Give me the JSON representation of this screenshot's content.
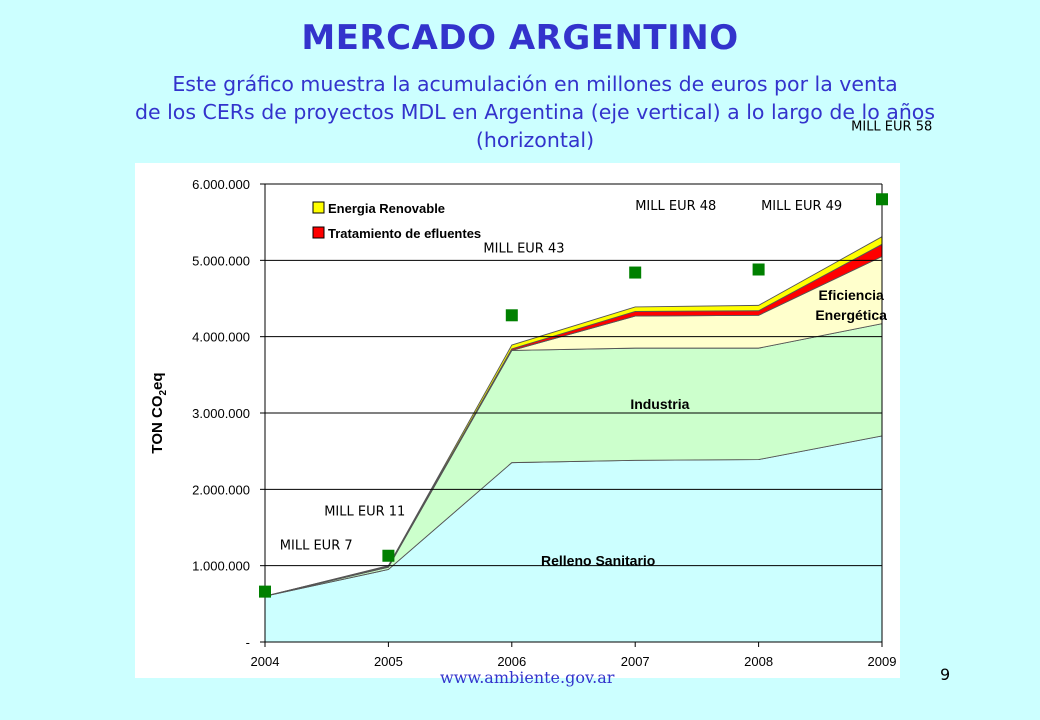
{
  "title": "MERCADO ARGENTINO",
  "subtitle_lines": [
    "Este gráfico muestra la acumulación en millones de euros por la venta",
    "de los CERs de proyectos MDL en Argentina (eje vertical) a lo largo de lo años",
    "(horizontal)"
  ],
  "footer_text": "www.ambiente.gov.ar",
  "page_number": "9",
  "chart_data": {
    "type": "area",
    "ylabel_main": "TON CO",
    "ylabel_sub": "2",
    "ylabel_suffix": "eq",
    "x": [
      2004,
      2005,
      2006,
      2007,
      2008,
      2009
    ],
    "x_tick_labels": [
      "2004",
      "2005",
      "2006",
      "2007",
      "2008",
      "2009"
    ],
    "ylim": [
      0,
      6000000
    ],
    "y_tick_values": [
      0,
      1000000,
      2000000,
      3000000,
      4000000,
      5000000,
      6000000
    ],
    "y_tick_labels": [
      "-",
      "1.000.000",
      "2.000.000",
      "3.000.000",
      "4.000.000",
      "5.000.000",
      "6.000.000"
    ],
    "grid": true,
    "stacked_series": [
      {
        "name": "Relleno Sanitario",
        "color": "#ccffff",
        "values": [
          600000,
          950000,
          2350000,
          2380000,
          2390000,
          2700000
        ]
      },
      {
        "name": "Industria",
        "color": "#ccffcc",
        "values": [
          0,
          30000,
          1470000,
          1470000,
          1460000,
          1470000
        ]
      },
      {
        "name": "Eficiencia Energética",
        "color": "#ffffcc",
        "values": [
          0,
          10000,
          0,
          420000,
          430000,
          880000
        ]
      },
      {
        "name": "Tratamiento de efluentes",
        "color": "#ff0000",
        "values": [
          0,
          5000,
          20000,
          60000,
          60000,
          160000
        ]
      },
      {
        "name": "Energia Renovable",
        "color": "#ffff00",
        "values": [
          0,
          5000,
          50000,
          60000,
          70000,
          100000
        ]
      }
    ],
    "legend_entries": [
      "Energia Renovable",
      "Tratamiento de efluentes"
    ],
    "area_labels": [
      {
        "text": "Relleno Sanitario",
        "x": 2006.7,
        "y": 1000000
      },
      {
        "text": "Industria",
        "x": 2007.2,
        "y": 3050000
      },
      {
        "text": "Eficiencia",
        "x": 2008.75,
        "y": 4480000
      },
      {
        "text": "Energética",
        "x": 2008.75,
        "y": 4220000
      }
    ],
    "markers_series": {
      "color": "#008000",
      "points": [
        {
          "x": 2004,
          "y": 660000
        },
        {
          "x": 2005,
          "y": 1130000
        },
        {
          "x": 2006,
          "y": 4280000
        },
        {
          "x": 2007,
          "y": 4840000
        },
        {
          "x": 2008,
          "y": 4880000
        },
        {
          "x": 2009,
          "y": 5800000
        }
      ]
    },
    "annotations": [
      {
        "text": "MILL EUR 7",
        "x": 2004.12,
        "y": 1210000
      },
      {
        "text": "MILL EUR 11",
        "x": 2004.48,
        "y": 1660000
      },
      {
        "text": "MILL EUR 43",
        "x": 2005.77,
        "y": 5100000
      },
      {
        "text": "MILL EUR 48",
        "x": 2007.0,
        "y": 5660000
      },
      {
        "text": "MILL EUR 49",
        "x": 2008.02,
        "y": 5660000
      },
      {
        "text": "MILL EUR 58",
        "x": 2008.75,
        "y": 6700000
      }
    ]
  }
}
